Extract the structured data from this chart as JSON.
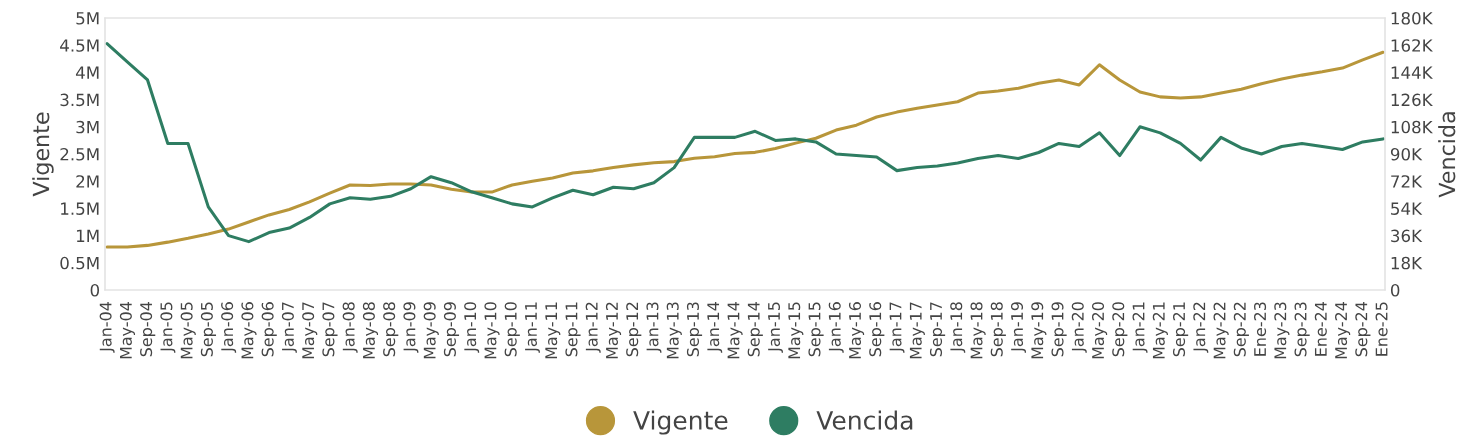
{
  "chart_data": {
    "type": "line",
    "categories": [
      "Jan-04",
      "May-04",
      "Sep-04",
      "Jan-05",
      "May-05",
      "Sep-05",
      "Jan-06",
      "May-06",
      "Sep-06",
      "Jan-07",
      "May-07",
      "Sep-07",
      "Jan-08",
      "May-08",
      "Sep-08",
      "Jan-09",
      "May-09",
      "Sep-09",
      "Jan-10",
      "May-10",
      "Sep-10",
      "Jan-11",
      "May-11",
      "Sep-11",
      "Jan-12",
      "May-12",
      "Sep-12",
      "Jan-13",
      "May-13",
      "Sep-13",
      "Jan-14",
      "May-14",
      "Sep-14",
      "Jan-15",
      "May-15",
      "Sep-15",
      "Jan-16",
      "May-16",
      "Sep-16",
      "Jan-17",
      "May-17",
      "Sep-17",
      "Jan-18",
      "May-18",
      "Sep-18",
      "Jan-19",
      "May-19",
      "Sep-19",
      "Jan-20",
      "May-20",
      "Sep-20",
      "Jan-21",
      "May-21",
      "Sep-21",
      "Jan-22",
      "May-22",
      "Sep-22",
      "Ene-23",
      "May-23",
      "Sep-23",
      "Ene-24",
      "May-24",
      "Sep-24",
      "Ene-25"
    ],
    "series": [
      {
        "name": "Vigente",
        "color": "#b8963a",
        "values": [
          790000,
          790000,
          820000,
          880000,
          950000,
          1030000,
          1120000,
          1250000,
          1380000,
          1480000,
          1620000,
          1780000,
          1930000,
          1920000,
          1950000,
          1950000,
          1930000,
          1850000,
          1800000,
          1800000,
          1930000,
          2000000,
          2060000,
          2150000,
          2190000,
          2250000,
          2300000,
          2340000,
          2360000,
          2420000,
          2450000,
          2510000,
          2530000,
          2600000,
          2700000,
          2790000,
          2940000,
          3030000,
          3180000,
          3270000,
          3340000,
          3400000,
          3460000,
          3620000,
          3660000,
          3710000,
          3800000,
          3860000,
          3770000,
          4140000,
          3860000,
          3640000,
          3550000,
          3530000,
          3550000,
          3620000,
          3690000,
          3790000,
          3880000,
          3950000,
          4010000,
          4080000,
          4230000,
          4370000
        ]
      },
      {
        "name": "Vencida",
        "color": "#2e7d62",
        "axis": "y2",
        "values": [
          163000,
          151000,
          139000,
          97000,
          97000,
          55000,
          36000,
          32000,
          38000,
          41000,
          48000,
          57000,
          61000,
          60000,
          62000,
          67000,
          75000,
          71000,
          65000,
          61000,
          57000,
          55000,
          61000,
          66000,
          63000,
          68000,
          67000,
          71000,
          81000,
          101000,
          101000,
          101000,
          105000,
          99000,
          100000,
          98000,
          90000,
          89000,
          88000,
          79000,
          81000,
          82000,
          84000,
          87000,
          89000,
          87000,
          91000,
          97000,
          95000,
          104000,
          89000,
          108000,
          104000,
          97000,
          86000,
          101000,
          94000,
          90000,
          95000,
          97000,
          95000,
          93000,
          98000,
          100000
        ]
      }
    ],
    "ylabel": "Vigente",
    "y2label": "Vencida",
    "ylim": [
      0,
      5000000
    ],
    "yticks": [
      0,
      {
        "value": 500000,
        "label": "0.5M"
      },
      {
        "value": 1000000,
        "label": "1M"
      },
      {
        "value": 1500000,
        "label": "1.5M"
      },
      {
        "value": 2000000,
        "label": "2M"
      },
      {
        "value": 2500000,
        "label": "2.5M"
      },
      {
        "value": 3000000,
        "label": "3M"
      },
      {
        "value": 3500000,
        "label": "3.5M"
      },
      {
        "value": 4000000,
        "label": "4M"
      },
      {
        "value": 4500000,
        "label": "4.5M"
      },
      {
        "value": 5000000,
        "label": "5M"
      }
    ],
    "y2lim": [
      0,
      180000
    ],
    "y2ticks": [
      0,
      {
        "value": 18000,
        "label": "18K"
      },
      {
        "value": 36000,
        "label": "36K"
      },
      {
        "value": 54000,
        "label": "54K"
      },
      {
        "value": 72000,
        "label": "72K"
      },
      {
        "value": 90000,
        "label": "90K"
      },
      {
        "value": 108000,
        "label": "108K"
      },
      {
        "value": 126000,
        "label": "126K"
      },
      {
        "value": 144000,
        "label": "144K"
      },
      {
        "value": 162000,
        "label": "162K"
      },
      {
        "value": 180000,
        "label": "180K"
      }
    ],
    "grid": false,
    "legend": "bottom",
    "marker": "none",
    "line_style": "solid"
  }
}
